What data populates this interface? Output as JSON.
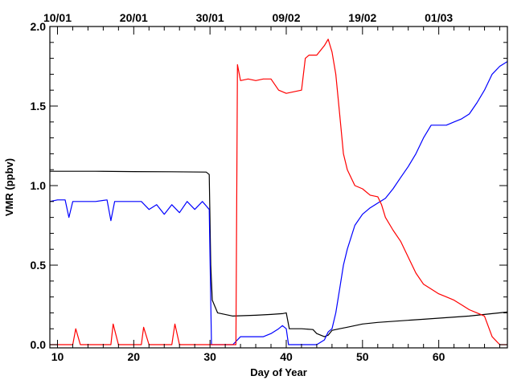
{
  "chart_data": {
    "type": "line",
    "title": "",
    "xlabel": "Day of Year",
    "ylabel": "VMR (ppbv)",
    "xlim": [
      9,
      69
    ],
    "ylim": [
      -0.02,
      2.0
    ],
    "x_ticks": [
      10,
      20,
      30,
      40,
      50,
      60
    ],
    "y_ticks": [
      0.0,
      0.5,
      1.0,
      1.5,
      2.0
    ],
    "x_tick_labels": [
      "10",
      "20",
      "30",
      "40",
      "50",
      "60"
    ],
    "y_tick_labels": [
      "0.0",
      "0.5",
      "1.0",
      "1.5",
      "2.0"
    ],
    "top_axis_labels": [
      {
        "x": 10,
        "label": "10/01"
      },
      {
        "x": 20,
        "label": "20/01"
      },
      {
        "x": 30,
        "label": "30/01"
      },
      {
        "x": 40,
        "label": "09/02"
      },
      {
        "x": 50,
        "label": "19/02"
      },
      {
        "x": 60,
        "label": "01/03"
      }
    ],
    "grid": false,
    "series": [
      {
        "color": "#000000",
        "x": [
          9,
          15,
          20,
          25,
          29.5,
          29.9,
          30.1,
          30.3,
          31,
          33,
          36,
          38,
          39.5,
          40,
          40.4,
          42,
          43.5,
          44,
          45,
          45.5,
          46,
          47,
          48,
          50,
          52,
          55,
          58,
          61,
          64,
          67,
          69
        ],
        "y": [
          1.09,
          1.09,
          1.088,
          1.087,
          1.085,
          1.07,
          0.5,
          0.28,
          0.2,
          0.18,
          0.185,
          0.19,
          0.195,
          0.2,
          0.1,
          0.1,
          0.095,
          0.07,
          0.05,
          0.06,
          0.09,
          0.1,
          0.11,
          0.13,
          0.14,
          0.15,
          0.16,
          0.17,
          0.18,
          0.195,
          0.205
        ]
      },
      {
        "color": "#0000ff",
        "x": [
          9,
          10,
          11,
          11.5,
          12,
          13,
          15,
          16.5,
          17,
          17.5,
          19,
          21,
          22,
          23,
          24,
          25,
          26,
          27,
          28,
          29,
          29.9,
          30.2,
          31,
          33,
          34,
          37,
          38,
          39,
          39.5,
          40,
          40.3,
          41,
          44,
          45,
          45.5,
          46,
          46.5,
          47,
          47.5,
          48,
          49,
          50,
          51,
          52,
          53,
          54,
          55,
          56,
          57,
          58,
          59,
          60,
          61,
          62,
          63,
          64,
          65,
          66,
          67,
          68,
          69
        ],
        "y": [
          0.9,
          0.91,
          0.91,
          0.8,
          0.9,
          0.9,
          0.9,
          0.91,
          0.78,
          0.9,
          0.9,
          0.9,
          0.85,
          0.88,
          0.82,
          0.88,
          0.83,
          0.9,
          0.85,
          0.9,
          0.85,
          0.0,
          0.0,
          0.0,
          0.05,
          0.05,
          0.07,
          0.1,
          0.12,
          0.1,
          0.0,
          0.0,
          0.0,
          0.03,
          0.08,
          0.1,
          0.2,
          0.35,
          0.5,
          0.6,
          0.75,
          0.82,
          0.86,
          0.89,
          0.92,
          0.98,
          1.05,
          1.12,
          1.2,
          1.3,
          1.38,
          1.38,
          1.38,
          1.4,
          1.42,
          1.45,
          1.52,
          1.6,
          1.7,
          1.75,
          1.78
        ]
      },
      {
        "color": "#ff0000",
        "x": [
          9,
          11,
          12,
          12.4,
          13,
          15,
          16,
          17,
          17.3,
          18,
          20,
          21,
          21.3,
          22,
          23,
          24,
          25,
          25.4,
          26,
          27,
          28,
          29,
          30,
          31,
          33.4,
          33.6,
          34,
          35,
          36,
          37,
          38,
          39,
          40,
          42,
          42.5,
          43,
          44,
          45,
          45.5,
          46,
          46.5,
          47,
          47.5,
          48,
          49,
          50,
          51,
          52,
          52.5,
          53,
          54,
          55,
          56,
          57,
          58,
          59,
          60,
          61,
          62,
          63,
          64,
          65,
          66,
          67,
          68,
          69
        ],
        "y": [
          0.0,
          0.0,
          0.0,
          0.1,
          0.0,
          0.0,
          0.0,
          0.0,
          0.13,
          0.0,
          0.0,
          0.0,
          0.11,
          0.0,
          0.0,
          0.0,
          0.0,
          0.13,
          0.0,
          0.0,
          0.0,
          0.0,
          0.0,
          0.0,
          0.0,
          1.76,
          1.66,
          1.67,
          1.66,
          1.67,
          1.67,
          1.6,
          1.58,
          1.6,
          1.8,
          1.82,
          1.82,
          1.88,
          1.92,
          1.84,
          1.7,
          1.45,
          1.2,
          1.1,
          1.0,
          0.98,
          0.94,
          0.93,
          0.88,
          0.8,
          0.72,
          0.65,
          0.55,
          0.45,
          0.38,
          0.35,
          0.32,
          0.3,
          0.28,
          0.25,
          0.22,
          0.2,
          0.18,
          0.05,
          0.0,
          0.0
        ]
      }
    ]
  }
}
